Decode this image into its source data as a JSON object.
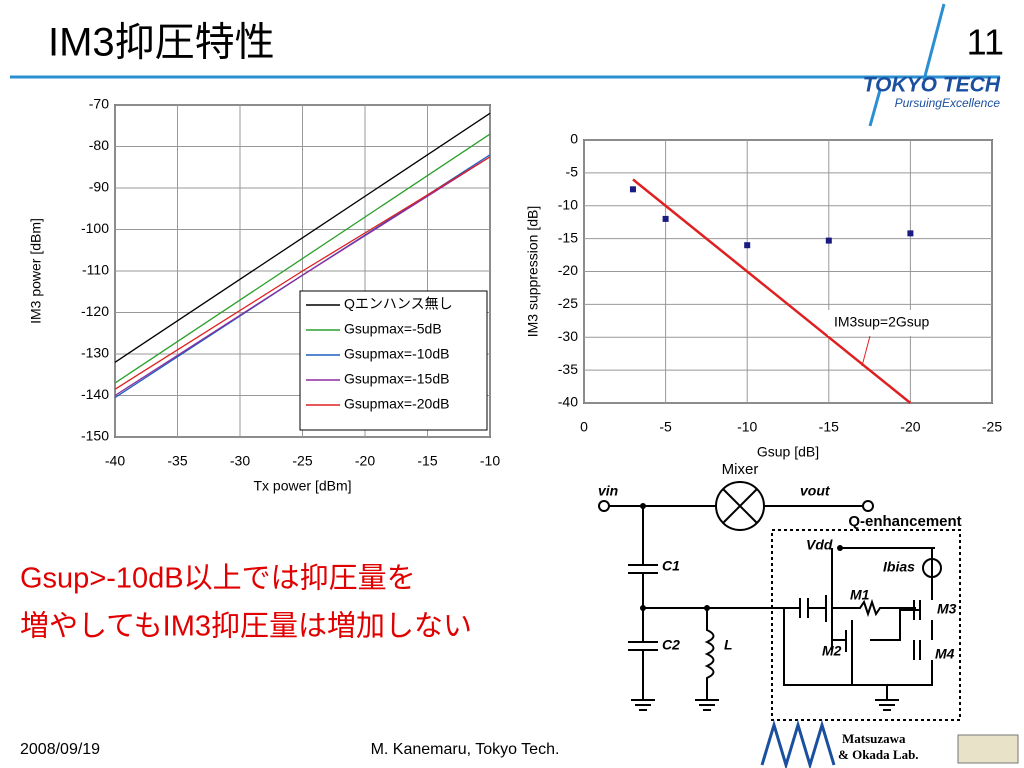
{
  "header": {
    "title": "IM3抑圧特性",
    "page": "11",
    "logo": "TOKYO TECH",
    "tagline": "PursuingExcellence"
  },
  "chart_data": [
    {
      "type": "line",
      "x_label": "Tx power [dBm]",
      "y_label": "IM3 power [dBm]",
      "x": [
        -40,
        -25,
        -10
      ],
      "series": [
        {
          "name": "Qエンハンス無し",
          "color": "#000000",
          "values": [
            -132,
            -102,
            -72
          ]
        },
        {
          "name": "Gsupmax=-5dB",
          "color": "#2ca02c",
          "values": [
            -137,
            -107,
            -77
          ]
        },
        {
          "name": "Gsupmax=-10dB",
          "color": "#1f5fbf",
          "values": [
            -140.5,
            -111,
            -82
          ]
        },
        {
          "name": "Gsupmax=-15dB",
          "color": "#8e2ca0",
          "values": [
            -140,
            -111,
            -82.5
          ]
        },
        {
          "name": "Gsupmax=-20dB",
          "color": "#e02020",
          "values": [
            -138.5,
            -110,
            -82.5
          ]
        }
      ],
      "xlim": [
        -40,
        -10
      ],
      "xticks": [
        -40,
        -35,
        -30,
        -25,
        -20,
        -15,
        -10
      ],
      "ylim": [
        -150,
        -70
      ],
      "yticks": [
        -150,
        -140,
        -130,
        -120,
        -110,
        -100,
        -90,
        -80,
        -70
      ],
      "grid": true,
      "legend": "lower right"
    },
    {
      "type": "scatter",
      "x_label": "Gsup [dB]",
      "y_label": "IM3 suppression [dB]",
      "annotation": "IM3sup=2Gsup",
      "series": [
        {
          "color": "#1a1a80",
          "x": [
            -3,
            -5,
            -10,
            -15,
            -20
          ],
          "values": [
            -7.5,
            -12,
            -16,
            -15.3,
            -14.2
          ]
        },
        {
          "type": "line",
          "color": "#e02020",
          "x": [
            -3,
            -20
          ],
          "values": [
            -6,
            -40
          ]
        }
      ],
      "xlim": [
        0,
        -25
      ],
      "xticks": [
        0,
        -5,
        -10,
        -15,
        -20,
        -25
      ],
      "ylim": [
        -40,
        0
      ],
      "yticks": [
        -40,
        -35,
        -30,
        -25,
        -20,
        -15,
        -10,
        -5,
        0
      ],
      "grid": true
    }
  ],
  "message": [
    "Gsup>-10dB以上では抑圧量を",
    "増やしてもIM3抑圧量は増加しない"
  ],
  "diagram": {
    "mixer": "Mixer",
    "vin": "vin",
    "vout": "vout",
    "box": "Q-enhancement",
    "vdd": "Vdd",
    "ibias": "Ibias",
    "m1": "M1",
    "m2": "M2",
    "m3": "M3",
    "m4": "M4",
    "c1": "C1",
    "c2": "C2",
    "l": "L"
  },
  "footer": {
    "date": "2008/09/19",
    "author": "M. Kanemaru, Tokyo Tech.",
    "lab": [
      "Matsuzawa",
      "& Okada Lab."
    ]
  }
}
